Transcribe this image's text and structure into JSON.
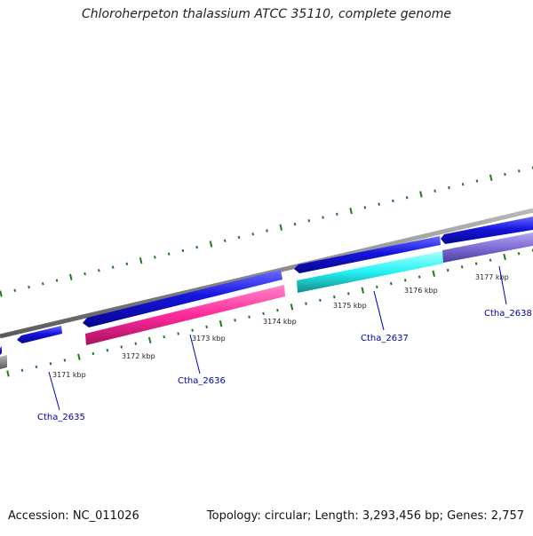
{
  "title": "Chloroherpeton thalassium ATCC 35110, complete genome",
  "accession_text": "Accession: NC_011026",
  "info_text": "Topology: circular; Length: 3,293,456 bp; Genes: 2,757",
  "colors": {
    "backbone": "#8a8a8a",
    "tick": "#1e7a1e",
    "forward_cds": "#1515e0",
    "reverse_cds_1": "#ff2a9c",
    "reverse_cds_2": "#22f2f2",
    "reverse_cds_3": "#7e6cd6",
    "edge_reverse": "#6a6a6a",
    "label_line": "#0000c0"
  },
  "ruler": [
    {
      "label": "3171 kbp"
    },
    {
      "label": "3172 kbp"
    },
    {
      "label": "3173 kbp"
    },
    {
      "label": "3174 kbp"
    },
    {
      "label": "3175 kbp"
    },
    {
      "label": "3176 kbp"
    },
    {
      "label": "3177 kbp"
    }
  ],
  "genes": [
    {
      "label": "Ctha_2635"
    },
    {
      "label": "Ctha_2636"
    },
    {
      "label": "Ctha_2637"
    },
    {
      "label": "Ctha_2638"
    }
  ]
}
